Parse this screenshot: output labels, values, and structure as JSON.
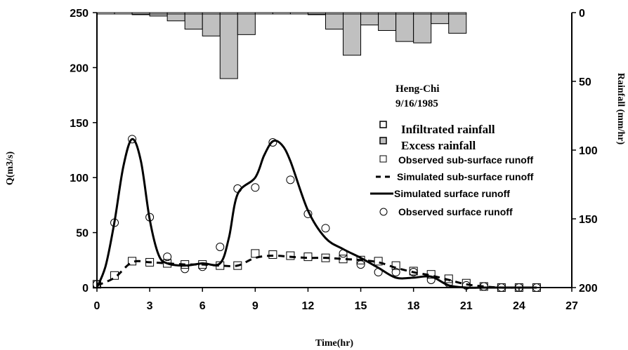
{
  "chart_data": {
    "type": "line",
    "annotation": {
      "station": "Heng-Chi",
      "date": "9/16/1985"
    },
    "xlabel": "Time(hr)",
    "ylabel": "Q(m3/s)",
    "y2label": "Rainfall (mm/hr)",
    "xlim": [
      0,
      27
    ],
    "ylim": [
      0,
      250
    ],
    "y2lim": [
      0,
      200
    ],
    "y2_inverted": true,
    "xticks": [
      "0",
      "3",
      "6",
      "9",
      "12",
      "15",
      "18",
      "21",
      "24",
      "27"
    ],
    "yticks": [
      "0",
      "50",
      "100",
      "150",
      "200",
      "250"
    ],
    "y2ticks": [
      "0",
      "50",
      "100",
      "150",
      "200"
    ],
    "legend_position": "right",
    "legend": [
      {
        "label": "Infiltrated rainfall",
        "symbol": "open-bar"
      },
      {
        "label": "Excess rainfall",
        "symbol": "gray-bar"
      },
      {
        "label": "Observed sub-surface runoff",
        "symbol": "open-square"
      },
      {
        "label": "Simulated sub-surface runoff",
        "symbol": "dashed-line"
      },
      {
        "label": "Simulated surface runoff",
        "symbol": "solid-line"
      },
      {
        "label": "Observed surface runoff",
        "symbol": "open-circle"
      }
    ],
    "rainfall": {
      "hours": [
        0,
        1,
        2,
        3,
        4,
        5,
        6,
        7,
        8,
        9,
        10,
        11,
        12,
        13,
        14,
        15,
        16,
        17,
        18,
        19,
        20,
        21
      ],
      "infiltrated": [
        1,
        1,
        1,
        1,
        1,
        1,
        1,
        1,
        1,
        1,
        1,
        1,
        1,
        1,
        1,
        1,
        1,
        1,
        1,
        1,
        1,
        0
      ],
      "excess": [
        0,
        0,
        0.5,
        1.5,
        5,
        11,
        16,
        47,
        15,
        0,
        0,
        0,
        0.5,
        11,
        30,
        8,
        12,
        20,
        21,
        7,
        14,
        0
      ]
    },
    "series": [
      {
        "name": "Observed surface runoff",
        "x": [
          0,
          1,
          2,
          3,
          4,
          5,
          6,
          7,
          8,
          9,
          10,
          11,
          12,
          13,
          14,
          15,
          16,
          17,
          18,
          19,
          20,
          21,
          22,
          23,
          24,
          25
        ],
        "y": [
          3,
          59,
          135,
          64,
          28,
          17,
          19,
          37,
          90,
          91,
          132,
          98,
          67,
          54,
          31,
          21,
          14,
          14,
          14,
          7,
          4,
          2,
          1,
          0,
          0,
          0
        ]
      },
      {
        "name": "Simulated surface runoff",
        "x": [
          0,
          0.5,
          1,
          1.5,
          2,
          2.5,
          3,
          3.5,
          4,
          5,
          6,
          7,
          7.5,
          8,
          9,
          9.5,
          10,
          10.5,
          11,
          12,
          13,
          14,
          15,
          16,
          17,
          18,
          19,
          20,
          21,
          22,
          23,
          24,
          25
        ],
        "y": [
          0,
          20,
          60,
          110,
          135,
          115,
          62,
          30,
          22,
          20,
          22,
          22,
          45,
          85,
          100,
          120,
          133,
          130,
          115,
          70,
          45,
          35,
          27,
          18,
          9,
          9,
          10,
          2,
          0,
          0,
          0,
          0,
          0
        ]
      },
      {
        "name": "Observed sub-surface runoff",
        "x": [
          0,
          1,
          2,
          3,
          4,
          5,
          6,
          7,
          8,
          9,
          10,
          11,
          12,
          13,
          14,
          15,
          16,
          17,
          18,
          19,
          20,
          21,
          22,
          23,
          24,
          25
        ],
        "y": [
          3,
          11,
          24,
          23,
          22,
          21,
          21,
          20,
          20,
          31,
          30,
          29,
          28,
          27,
          26,
          25,
          24,
          20,
          15,
          12,
          8,
          4,
          1,
          0,
          0,
          0
        ]
      },
      {
        "name": "Simulated sub-surface runoff",
        "x": [
          0,
          1,
          2,
          3,
          4,
          5,
          6,
          7,
          8,
          9,
          10,
          11,
          12,
          13,
          14,
          15,
          16,
          17,
          18,
          19,
          20,
          21,
          22,
          23,
          24,
          25
        ],
        "y": [
          2,
          9,
          23,
          23,
          22,
          21,
          21,
          20,
          20,
          27,
          29,
          28,
          27,
          27,
          26,
          25,
          23,
          18,
          14,
          11,
          7,
          3,
          1,
          0,
          0,
          0
        ]
      }
    ]
  }
}
